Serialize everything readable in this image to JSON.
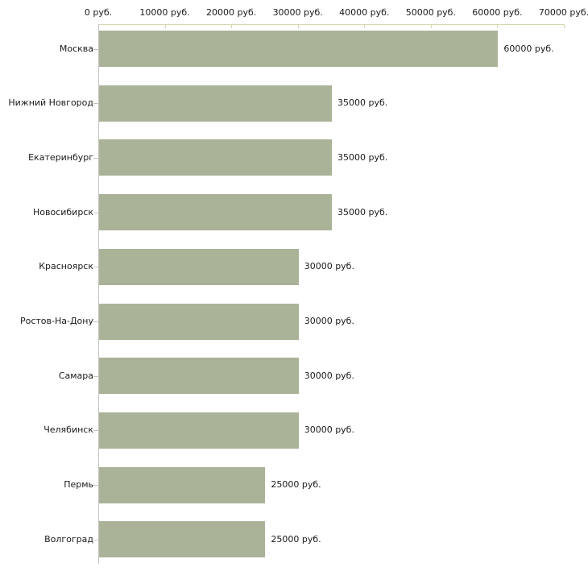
{
  "chart_data": {
    "type": "bar",
    "orientation": "horizontal",
    "title": "",
    "xlabel": "",
    "ylabel": "",
    "unit": "руб.",
    "xlim": [
      0,
      70000
    ],
    "grid": false,
    "legend": null,
    "categories": [
      "Москва",
      "Нижний Новгород",
      "Екатеринбург",
      "Новосибирск",
      "Красноярск",
      "Ростов-На-Дону",
      "Самара",
      "Челябинск",
      "Пермь",
      "Волгоград"
    ],
    "values": [
      60000,
      35000,
      35000,
      35000,
      30000,
      30000,
      30000,
      30000,
      25000,
      25000
    ],
    "value_labels": [
      "60000 руб.",
      "35000 руб.",
      "35000 руб.",
      "35000 руб.",
      "30000 руб.",
      "30000 руб.",
      "30000 руб.",
      "30000 руб.",
      "25000 руб.",
      "25000 руб."
    ],
    "x_ticks": [
      0,
      10000,
      20000,
      30000,
      40000,
      50000,
      60000,
      70000
    ],
    "x_tick_labels": [
      "0 руб.",
      "10000 руб.",
      "20000 руб.",
      "30000 руб.",
      "40000 руб.",
      "50000 руб.",
      "60000 руб.",
      "70000 руб."
    ],
    "colors": {
      "bar": "#aab398",
      "x_axis_line": "#d6d6ae",
      "x_tick": "#d6d6ae",
      "y_axis_line": "#c4c4c4",
      "category_tick": "#c8c8b0",
      "text": "#1a1a1a",
      "background": "#ffffff"
    }
  }
}
